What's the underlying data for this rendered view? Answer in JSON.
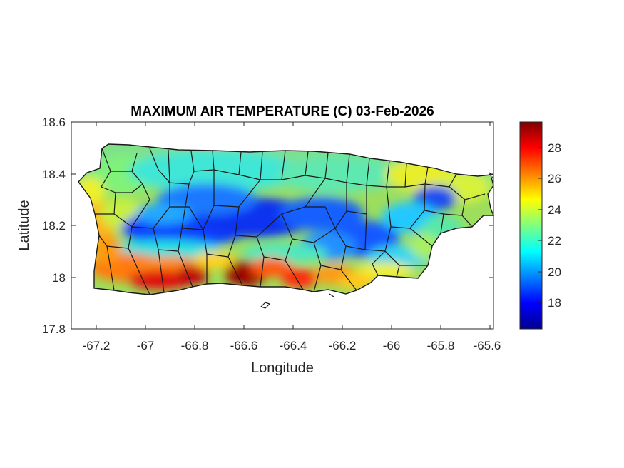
{
  "title": "MAXIMUM AIR TEMPERATURE (C) 03-Feb-2026",
  "xlabel": "Longitude",
  "ylabel": "Latitude",
  "x_ticks": [
    "-67.2",
    "-67",
    "-66.8",
    "-66.6",
    "-66.4",
    "-66.2",
    "-66",
    "-65.8",
    "-65.6"
  ],
  "y_ticks": [
    "18.6",
    "18.4",
    "18.2",
    "18",
    "17.8"
  ],
  "colorbar": {
    "ticks": [
      "28",
      "26",
      "24",
      "22",
      "20",
      "18"
    ],
    "colormap": "jet"
  },
  "chart_data": {
    "type": "heatmap",
    "title": "MAXIMUM AIR TEMPERATURE (C) 03-Feb-2026",
    "xlabel": "Longitude",
    "ylabel": "Latitude",
    "xlim": [
      -67.3,
      -65.58
    ],
    "ylim": [
      17.8,
      18.6
    ],
    "clim": [
      16.2,
      29.6
    ],
    "x_ticks": [
      -67.2,
      -67,
      -66.8,
      -66.6,
      -66.4,
      -66.2,
      -66,
      -65.8,
      -65.6
    ],
    "y_ticks": [
      17.8,
      18,
      18.2,
      18.4,
      18.6
    ],
    "colorbar_ticks": [
      18,
      20,
      22,
      24,
      26,
      28
    ],
    "colormap": "jet",
    "region": "Puerto Rico, with municipal boundaries",
    "grid": false
  }
}
